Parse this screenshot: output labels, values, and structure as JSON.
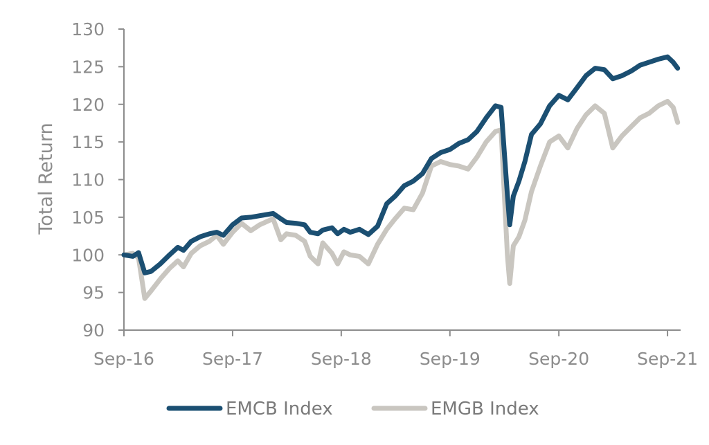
{
  "chart_data": {
    "type": "line",
    "title": "",
    "xlabel": "",
    "ylabel": "Total Return",
    "ylim": [
      90,
      130
    ],
    "xlim": [
      "2016-09-01",
      "2021-10-15"
    ],
    "y_ticks": [
      90,
      95,
      100,
      105,
      110,
      115,
      120,
      125,
      130
    ],
    "x_ticks": [
      {
        "label": "Sep-16",
        "date": "2016-09-01"
      },
      {
        "label": "Sep-17",
        "date": "2017-09-01"
      },
      {
        "label": "Sep-18",
        "date": "2018-09-01"
      },
      {
        "label": "Sep-19",
        "date": "2019-09-01"
      },
      {
        "label": "Sep-20",
        "date": "2020-09-01"
      },
      {
        "label": "Sep-21",
        "date": "2021-09-01"
      }
    ],
    "grid": false,
    "legend": "bottom",
    "series": [
      {
        "name": "EMCB Index",
        "color": "#1b4f72",
        "points": [
          [
            "2016-09-01",
            100.0
          ],
          [
            "2016-10-01",
            99.8
          ],
          [
            "2016-10-20",
            100.3
          ],
          [
            "2016-11-10",
            97.6
          ],
          [
            "2016-12-01",
            97.8
          ],
          [
            "2017-01-01",
            98.8
          ],
          [
            "2017-02-01",
            100.0
          ],
          [
            "2017-03-01",
            101.0
          ],
          [
            "2017-03-20",
            100.6
          ],
          [
            "2017-04-15",
            101.8
          ],
          [
            "2017-05-15",
            102.4
          ],
          [
            "2017-06-15",
            102.8
          ],
          [
            "2017-07-10",
            103.0
          ],
          [
            "2017-08-01",
            102.6
          ],
          [
            "2017-09-01",
            104.0
          ],
          [
            "2017-10-01",
            104.9
          ],
          [
            "2017-11-01",
            105.0
          ],
          [
            "2017-12-01",
            105.2
          ],
          [
            "2018-01-15",
            105.5
          ],
          [
            "2018-02-10",
            104.8
          ],
          [
            "2018-03-01",
            104.3
          ],
          [
            "2018-04-01",
            104.2
          ],
          [
            "2018-05-01",
            104.0
          ],
          [
            "2018-05-20",
            103.0
          ],
          [
            "2018-06-15",
            102.8
          ],
          [
            "2018-07-01",
            103.3
          ],
          [
            "2018-08-01",
            103.6
          ],
          [
            "2018-08-20",
            102.8
          ],
          [
            "2018-09-10",
            103.4
          ],
          [
            "2018-10-01",
            103.0
          ],
          [
            "2018-11-01",
            103.4
          ],
          [
            "2018-12-01",
            102.7
          ],
          [
            "2019-01-01",
            103.8
          ],
          [
            "2019-02-01",
            106.8
          ],
          [
            "2019-03-01",
            107.8
          ],
          [
            "2019-04-01",
            109.2
          ],
          [
            "2019-05-01",
            109.8
          ],
          [
            "2019-06-01",
            110.8
          ],
          [
            "2019-07-01",
            112.8
          ],
          [
            "2019-08-01",
            113.6
          ],
          [
            "2019-09-01",
            114.0
          ],
          [
            "2019-10-01",
            114.8
          ],
          [
            "2019-11-01",
            115.3
          ],
          [
            "2019-12-01",
            116.4
          ],
          [
            "2020-01-01",
            118.2
          ],
          [
            "2020-02-01",
            119.8
          ],
          [
            "2020-02-20",
            119.6
          ],
          [
            "2020-03-12",
            108.0
          ],
          [
            "2020-03-20",
            104.0
          ],
          [
            "2020-04-01",
            107.8
          ],
          [
            "2020-04-20",
            109.8
          ],
          [
            "2020-05-10",
            112.4
          ],
          [
            "2020-06-01",
            116.0
          ],
          [
            "2020-07-01",
            117.4
          ],
          [
            "2020-08-01",
            119.8
          ],
          [
            "2020-09-01",
            121.2
          ],
          [
            "2020-10-01",
            120.6
          ],
          [
            "2020-11-01",
            122.2
          ],
          [
            "2020-12-01",
            123.8
          ],
          [
            "2021-01-01",
            124.8
          ],
          [
            "2021-02-01",
            124.6
          ],
          [
            "2021-03-01",
            123.4
          ],
          [
            "2021-04-01",
            123.8
          ],
          [
            "2021-05-01",
            124.4
          ],
          [
            "2021-06-01",
            125.2
          ],
          [
            "2021-07-01",
            125.6
          ],
          [
            "2021-08-01",
            126.0
          ],
          [
            "2021-09-01",
            126.3
          ],
          [
            "2021-09-20",
            125.6
          ],
          [
            "2021-10-05",
            124.8
          ]
        ]
      },
      {
        "name": "EMGB Index",
        "color": "#c9c6c0",
        "points": [
          [
            "2016-09-01",
            100.0
          ],
          [
            "2016-10-01",
            100.2
          ],
          [
            "2016-10-20",
            99.6
          ],
          [
            "2016-11-10",
            94.2
          ],
          [
            "2016-12-01",
            95.2
          ],
          [
            "2017-01-01",
            96.8
          ],
          [
            "2017-02-01",
            98.2
          ],
          [
            "2017-03-01",
            99.2
          ],
          [
            "2017-03-20",
            98.4
          ],
          [
            "2017-04-15",
            100.2
          ],
          [
            "2017-05-15",
            101.2
          ],
          [
            "2017-06-15",
            101.8
          ],
          [
            "2017-07-10",
            102.6
          ],
          [
            "2017-08-01",
            101.4
          ],
          [
            "2017-09-01",
            103.0
          ],
          [
            "2017-10-01",
            104.2
          ],
          [
            "2017-11-01",
            103.2
          ],
          [
            "2017-12-01",
            104.0
          ],
          [
            "2018-01-15",
            104.8
          ],
          [
            "2018-02-10",
            102.0
          ],
          [
            "2018-03-01",
            102.8
          ],
          [
            "2018-04-01",
            102.6
          ],
          [
            "2018-05-01",
            101.8
          ],
          [
            "2018-05-20",
            99.8
          ],
          [
            "2018-06-15",
            98.8
          ],
          [
            "2018-07-01",
            101.6
          ],
          [
            "2018-08-01",
            100.2
          ],
          [
            "2018-08-20",
            98.8
          ],
          [
            "2018-09-10",
            100.4
          ],
          [
            "2018-10-01",
            100.0
          ],
          [
            "2018-11-01",
            99.8
          ],
          [
            "2018-12-01",
            98.8
          ],
          [
            "2019-01-01",
            101.4
          ],
          [
            "2019-02-01",
            103.4
          ],
          [
            "2019-03-01",
            104.8
          ],
          [
            "2019-04-01",
            106.2
          ],
          [
            "2019-05-01",
            106.0
          ],
          [
            "2019-06-01",
            108.2
          ],
          [
            "2019-07-01",
            111.8
          ],
          [
            "2019-08-01",
            112.4
          ],
          [
            "2019-09-01",
            112.0
          ],
          [
            "2019-10-01",
            111.8
          ],
          [
            "2019-11-01",
            111.4
          ],
          [
            "2019-12-01",
            113.0
          ],
          [
            "2020-01-01",
            115.0
          ],
          [
            "2020-02-01",
            116.4
          ],
          [
            "2020-02-20",
            116.6
          ],
          [
            "2020-03-12",
            100.0
          ],
          [
            "2020-03-20",
            96.2
          ],
          [
            "2020-04-01",
            101.2
          ],
          [
            "2020-04-20",
            102.4
          ],
          [
            "2020-05-10",
            104.6
          ],
          [
            "2020-06-01",
            108.4
          ],
          [
            "2020-07-01",
            111.8
          ],
          [
            "2020-08-01",
            115.0
          ],
          [
            "2020-09-01",
            115.8
          ],
          [
            "2020-10-01",
            114.2
          ],
          [
            "2020-11-01",
            116.8
          ],
          [
            "2020-12-01",
            118.6
          ],
          [
            "2021-01-01",
            119.8
          ],
          [
            "2021-02-01",
            118.8
          ],
          [
            "2021-03-01",
            114.2
          ],
          [
            "2021-04-01",
            115.8
          ],
          [
            "2021-05-01",
            117.0
          ],
          [
            "2021-06-01",
            118.2
          ],
          [
            "2021-07-01",
            118.8
          ],
          [
            "2021-08-01",
            119.8
          ],
          [
            "2021-09-01",
            120.4
          ],
          [
            "2021-09-20",
            119.6
          ],
          [
            "2021-10-05",
            117.6
          ]
        ]
      }
    ]
  }
}
